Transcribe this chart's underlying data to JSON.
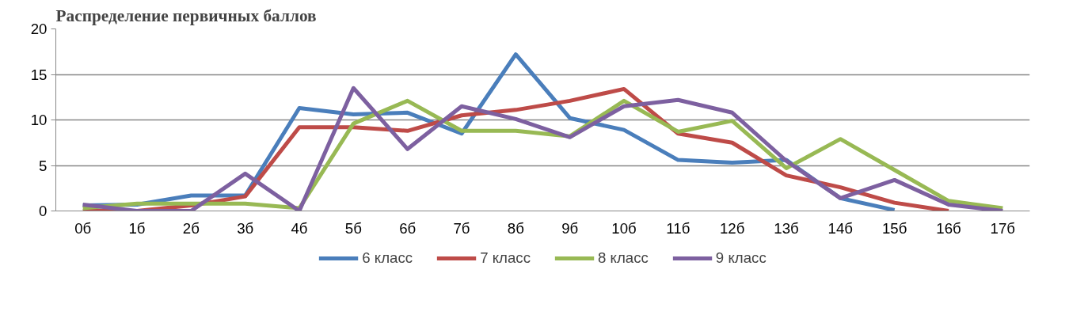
{
  "chart_data": {
    "type": "line",
    "title": "Распределение первичных баллов",
    "categories": [
      "0б",
      "1б",
      "2б",
      "3б",
      "4б",
      "5б",
      "6б",
      "7б",
      "8б",
      "9б",
      "10б",
      "11б",
      "12б",
      "13б",
      "14б",
      "15б",
      "16б",
      "17б"
    ],
    "series": [
      {
        "name": "6 класс",
        "color": "#4a7ebb",
        "values": [
          0.6,
          0.7,
          1.7,
          1.7,
          11.3,
          10.6,
          10.8,
          8.5,
          17.2,
          10.2,
          8.9,
          5.6,
          5.3,
          5.6,
          1.4,
          0.1,
          null,
          null
        ]
      },
      {
        "name": "7 класс",
        "color": "#be4b48",
        "values": [
          0,
          0,
          0.6,
          1.6,
          9.2,
          9.2,
          8.8,
          10.5,
          11.1,
          12.1,
          13.4,
          8.5,
          7.5,
          3.9,
          2.6,
          0.9,
          0,
          null
        ]
      },
      {
        "name": "8 класс",
        "color": "#98b954",
        "values": [
          0.3,
          0.8,
          0.8,
          0.8,
          0.3,
          9.6,
          12.1,
          8.8,
          8.8,
          8.2,
          12.1,
          8.7,
          9.9,
          4.7,
          7.9,
          4.5,
          1.1,
          0.3
        ]
      },
      {
        "name": "9 класс",
        "color": "#7d60a0",
        "values": [
          0.7,
          0,
          0,
          4.1,
          0,
          13.5,
          6.8,
          11.5,
          10.1,
          8.1,
          11.5,
          12.2,
          10.8,
          5.5,
          1.4,
          3.4,
          0.7,
          0
        ]
      }
    ],
    "ylim": [
      0,
      20
    ],
    "yticks": [
      0,
      5,
      10,
      15,
      20
    ],
    "grid": "y",
    "legend": "bottom",
    "marker": "none",
    "line_style": "solid"
  }
}
